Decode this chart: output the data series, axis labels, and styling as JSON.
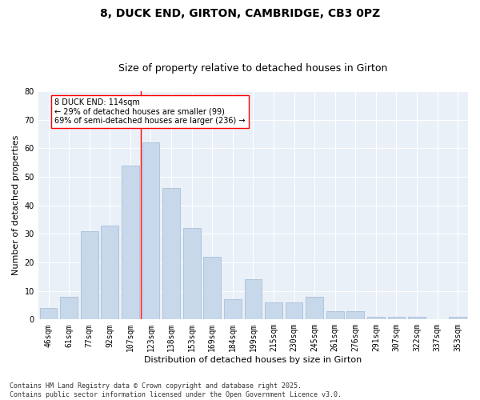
{
  "title1": "8, DUCK END, GIRTON, CAMBRIDGE, CB3 0PZ",
  "title2": "Size of property relative to detached houses in Girton",
  "xlabel": "Distribution of detached houses by size in Girton",
  "ylabel": "Number of detached properties",
  "categories": [
    "46sqm",
    "61sqm",
    "77sqm",
    "92sqm",
    "107sqm",
    "123sqm",
    "138sqm",
    "153sqm",
    "169sqm",
    "184sqm",
    "199sqm",
    "215sqm",
    "230sqm",
    "245sqm",
    "261sqm",
    "276sqm",
    "291sqm",
    "307sqm",
    "322sqm",
    "337sqm",
    "353sqm"
  ],
  "values": [
    4,
    8,
    31,
    33,
    54,
    62,
    46,
    32,
    22,
    7,
    14,
    6,
    6,
    8,
    3,
    3,
    1,
    1,
    1,
    0,
    1
  ],
  "bar_color": "#c8d8eb",
  "bar_edge_color": "#a8c0d8",
  "vline_color": "red",
  "vline_index": 4,
  "annotation_text": "8 DUCK END: 114sqm\n← 29% of detached houses are smaller (99)\n69% of semi-detached houses are larger (236) →",
  "annotation_box_color": "white",
  "annotation_box_edgecolor": "red",
  "ylim": [
    0,
    80
  ],
  "yticks": [
    0,
    10,
    20,
    30,
    40,
    50,
    60,
    70,
    80
  ],
  "background_color": "#eaf0f8",
  "footer": "Contains HM Land Registry data © Crown copyright and database right 2025.\nContains public sector information licensed under the Open Government Licence v3.0.",
  "title_fontsize": 10,
  "subtitle_fontsize": 9,
  "axis_label_fontsize": 8,
  "tick_fontsize": 7,
  "annot_fontsize": 7,
  "footer_fontsize": 6
}
